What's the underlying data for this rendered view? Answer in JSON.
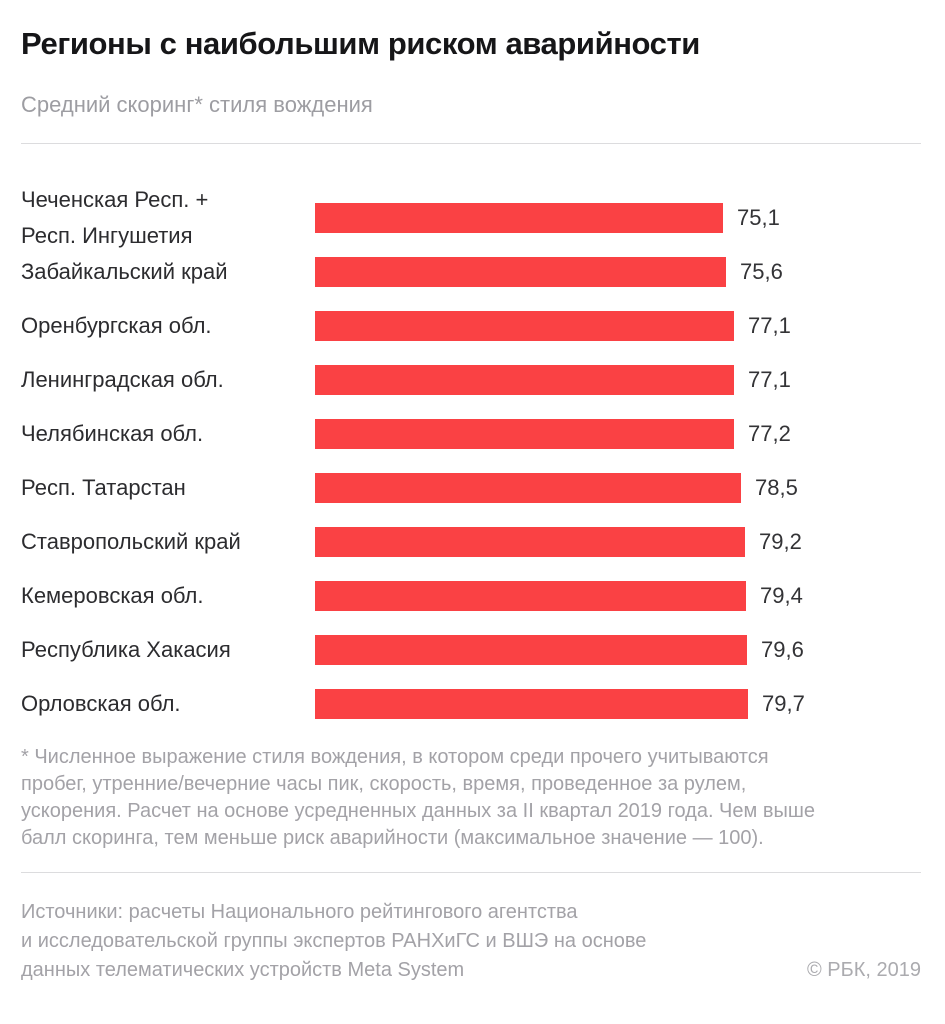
{
  "header": {
    "title": "Регионы с наибольшим риском аварийности",
    "subtitle": "Средний скоринг* стиля вождения"
  },
  "chart_data": {
    "type": "bar",
    "orientation": "horizontal",
    "title": "Регионы с наибольшим риском аварийности",
    "subtitle": "Средний скоринг* стиля вождения",
    "xlabel": "",
    "ylabel": "",
    "xlim": [
      0,
      79.7
    ],
    "grid": false,
    "legend": false,
    "bar_color": "#fa4144",
    "value_label_decimal_separator": ",",
    "categories": [
      "Чеченская Респ. + Респ. Ингушетия",
      "Забайкальский край",
      "Оренбургская обл.",
      "Ленинградская обл.",
      "Челябинская обл.",
      "Респ. Татарстан",
      "Ставропольский край",
      "Кемеровская обл.",
      "Республика Хакасия",
      "Орловская обл."
    ],
    "values": [
      75.1,
      75.6,
      77.1,
      77.1,
      77.2,
      78.5,
      79.2,
      79.4,
      79.6,
      79.7
    ],
    "rows": [
      {
        "label": [
          "Чеченская Респ. +",
          "Респ. Ингушетия"
        ],
        "value": 75.1,
        "display": "75,1"
      },
      {
        "label": "Забайкальский край",
        "value": 75.6,
        "display": "75,6"
      },
      {
        "label": "Оренбургская обл.",
        "value": 77.1,
        "display": "77,1"
      },
      {
        "label": "Ленинградская обл.",
        "value": 77.1,
        "display": "77,1"
      },
      {
        "label": "Челябинская обл.",
        "value": 77.2,
        "display": "77,2"
      },
      {
        "label": "Респ. Татарстан",
        "value": 78.5,
        "display": "78,5"
      },
      {
        "label": "Ставропольский край",
        "value": 79.2,
        "display": "79,2"
      },
      {
        "label": "Кемеровская обл.",
        "value": 79.4,
        "display": "79,4"
      },
      {
        "label": "Республика Хакасия",
        "value": 79.6,
        "display": "79,6"
      },
      {
        "label": "Орловская обл.",
        "value": 79.7,
        "display": "79,7"
      }
    ]
  },
  "footnote": {
    "lines": [
      "* Численное выражение стиля вождения, в котором среди прочего учитываются",
      "пробег, утренние/вечерние часы пик, скорость, время, проведенное за рулем,",
      "ускорения. Расчет на основе усредненных данных за II квартал 2019 года. Чем выше",
      "балл скоринга, тем меньше риск аварийности (максимальное значение — 100)."
    ]
  },
  "footer": {
    "sources_lines": [
      "Источники: расчеты Национального рейтингового агентства",
      "и исследовательской группы экспертов РАНХиГС и ВШЭ на основе",
      "данных телематических устройств Meta System"
    ],
    "copyright": "© РБК, 2019"
  }
}
